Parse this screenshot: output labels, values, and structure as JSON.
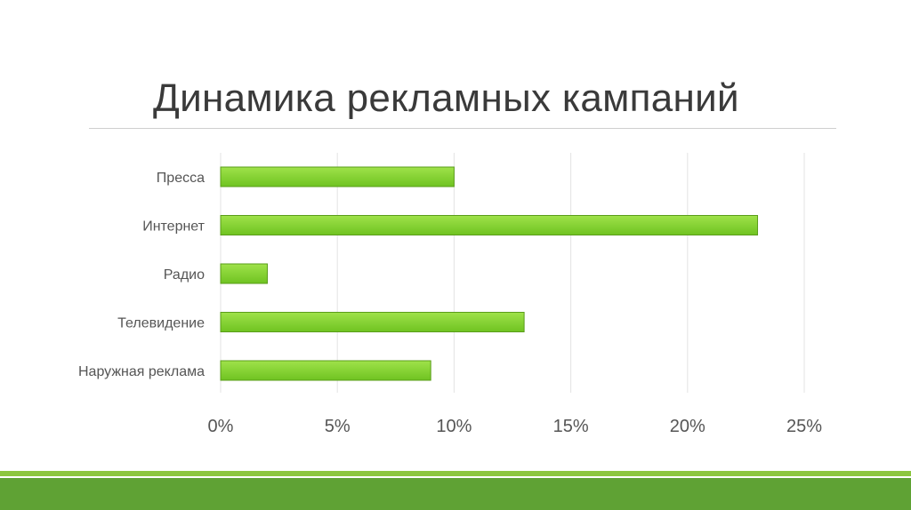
{
  "slide": {
    "title": "Динамика рекламных кампаний"
  },
  "colors": {
    "bar_fill_top": "#9fe24a",
    "bar_fill_bottom": "#6fc321",
    "bar_stroke": "#5a9d1a",
    "footer_light": "#8cc63f",
    "footer_dark": "#5fa234"
  },
  "chart_data": {
    "type": "bar",
    "orientation": "horizontal",
    "categories": [
      "Пресса",
      "Интернет",
      "Радио",
      "Телевидение",
      "Наружная реклама"
    ],
    "values": [
      10,
      23,
      2,
      13,
      9
    ],
    "xlim": [
      0,
      25
    ],
    "xticks": [
      "0%",
      "5%",
      "10%",
      "15%",
      "20%",
      "25%"
    ],
    "tick_values": [
      0,
      5,
      10,
      15,
      20,
      25
    ],
    "grid": "vertical",
    "legend": "none"
  }
}
